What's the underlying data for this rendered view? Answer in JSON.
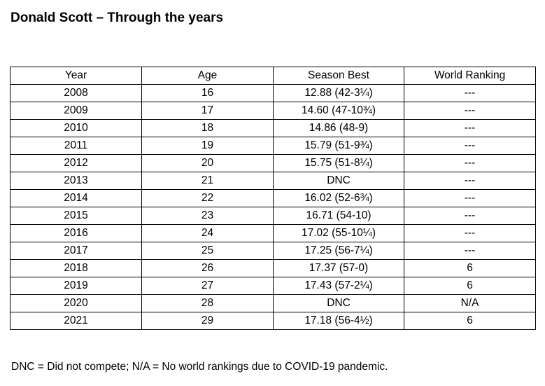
{
  "title": "Donald Scott – Through the years",
  "table": {
    "headers": {
      "year": "Year",
      "age": "Age",
      "season_best": "Season Best",
      "world_ranking": "World Ranking"
    },
    "rows": [
      {
        "year": "2008",
        "age": "16",
        "season_best": "12.88 (42-3¼)",
        "world_ranking": "---"
      },
      {
        "year": "2009",
        "age": "17",
        "season_best": "14.60 (47-10¾)",
        "world_ranking": "---"
      },
      {
        "year": "2010",
        "age": "18",
        "season_best": "14.86 (48-9)",
        "world_ranking": "---"
      },
      {
        "year": "2011",
        "age": "19",
        "season_best": "15.79 (51-9¾)",
        "world_ranking": "---"
      },
      {
        "year": "2012",
        "age": "20",
        "season_best": "15.75 (51-8¼)",
        "world_ranking": "---"
      },
      {
        "year": "2013",
        "age": "21",
        "season_best": "DNC",
        "world_ranking": "---"
      },
      {
        "year": "2014",
        "age": "22",
        "season_best": "16.02 (52-6¾)",
        "world_ranking": "---"
      },
      {
        "year": "2015",
        "age": "23",
        "season_best": "16.71 (54-10)",
        "world_ranking": "---"
      },
      {
        "year": "2016",
        "age": "24",
        "season_best": "17.02 (55-10¼)",
        "world_ranking": "---"
      },
      {
        "year": "2017",
        "age": "25",
        "season_best": "17.25 (56-7¼)",
        "world_ranking": "---"
      },
      {
        "year": "2018",
        "age": "26",
        "season_best": "17.37 (57-0)",
        "world_ranking": "6"
      },
      {
        "year": "2019",
        "age": "27",
        "season_best": "17.43 (57-2¼)",
        "world_ranking": "6"
      },
      {
        "year": "2020",
        "age": "28",
        "season_best": "DNC",
        "world_ranking": "N/A"
      },
      {
        "year": "2021",
        "age": "29",
        "season_best": "17.18 (56-4½)",
        "world_ranking": "6"
      }
    ]
  },
  "footnote": "DNC = Did not compete; N/A = No world rankings due to COVID-19 pandemic."
}
